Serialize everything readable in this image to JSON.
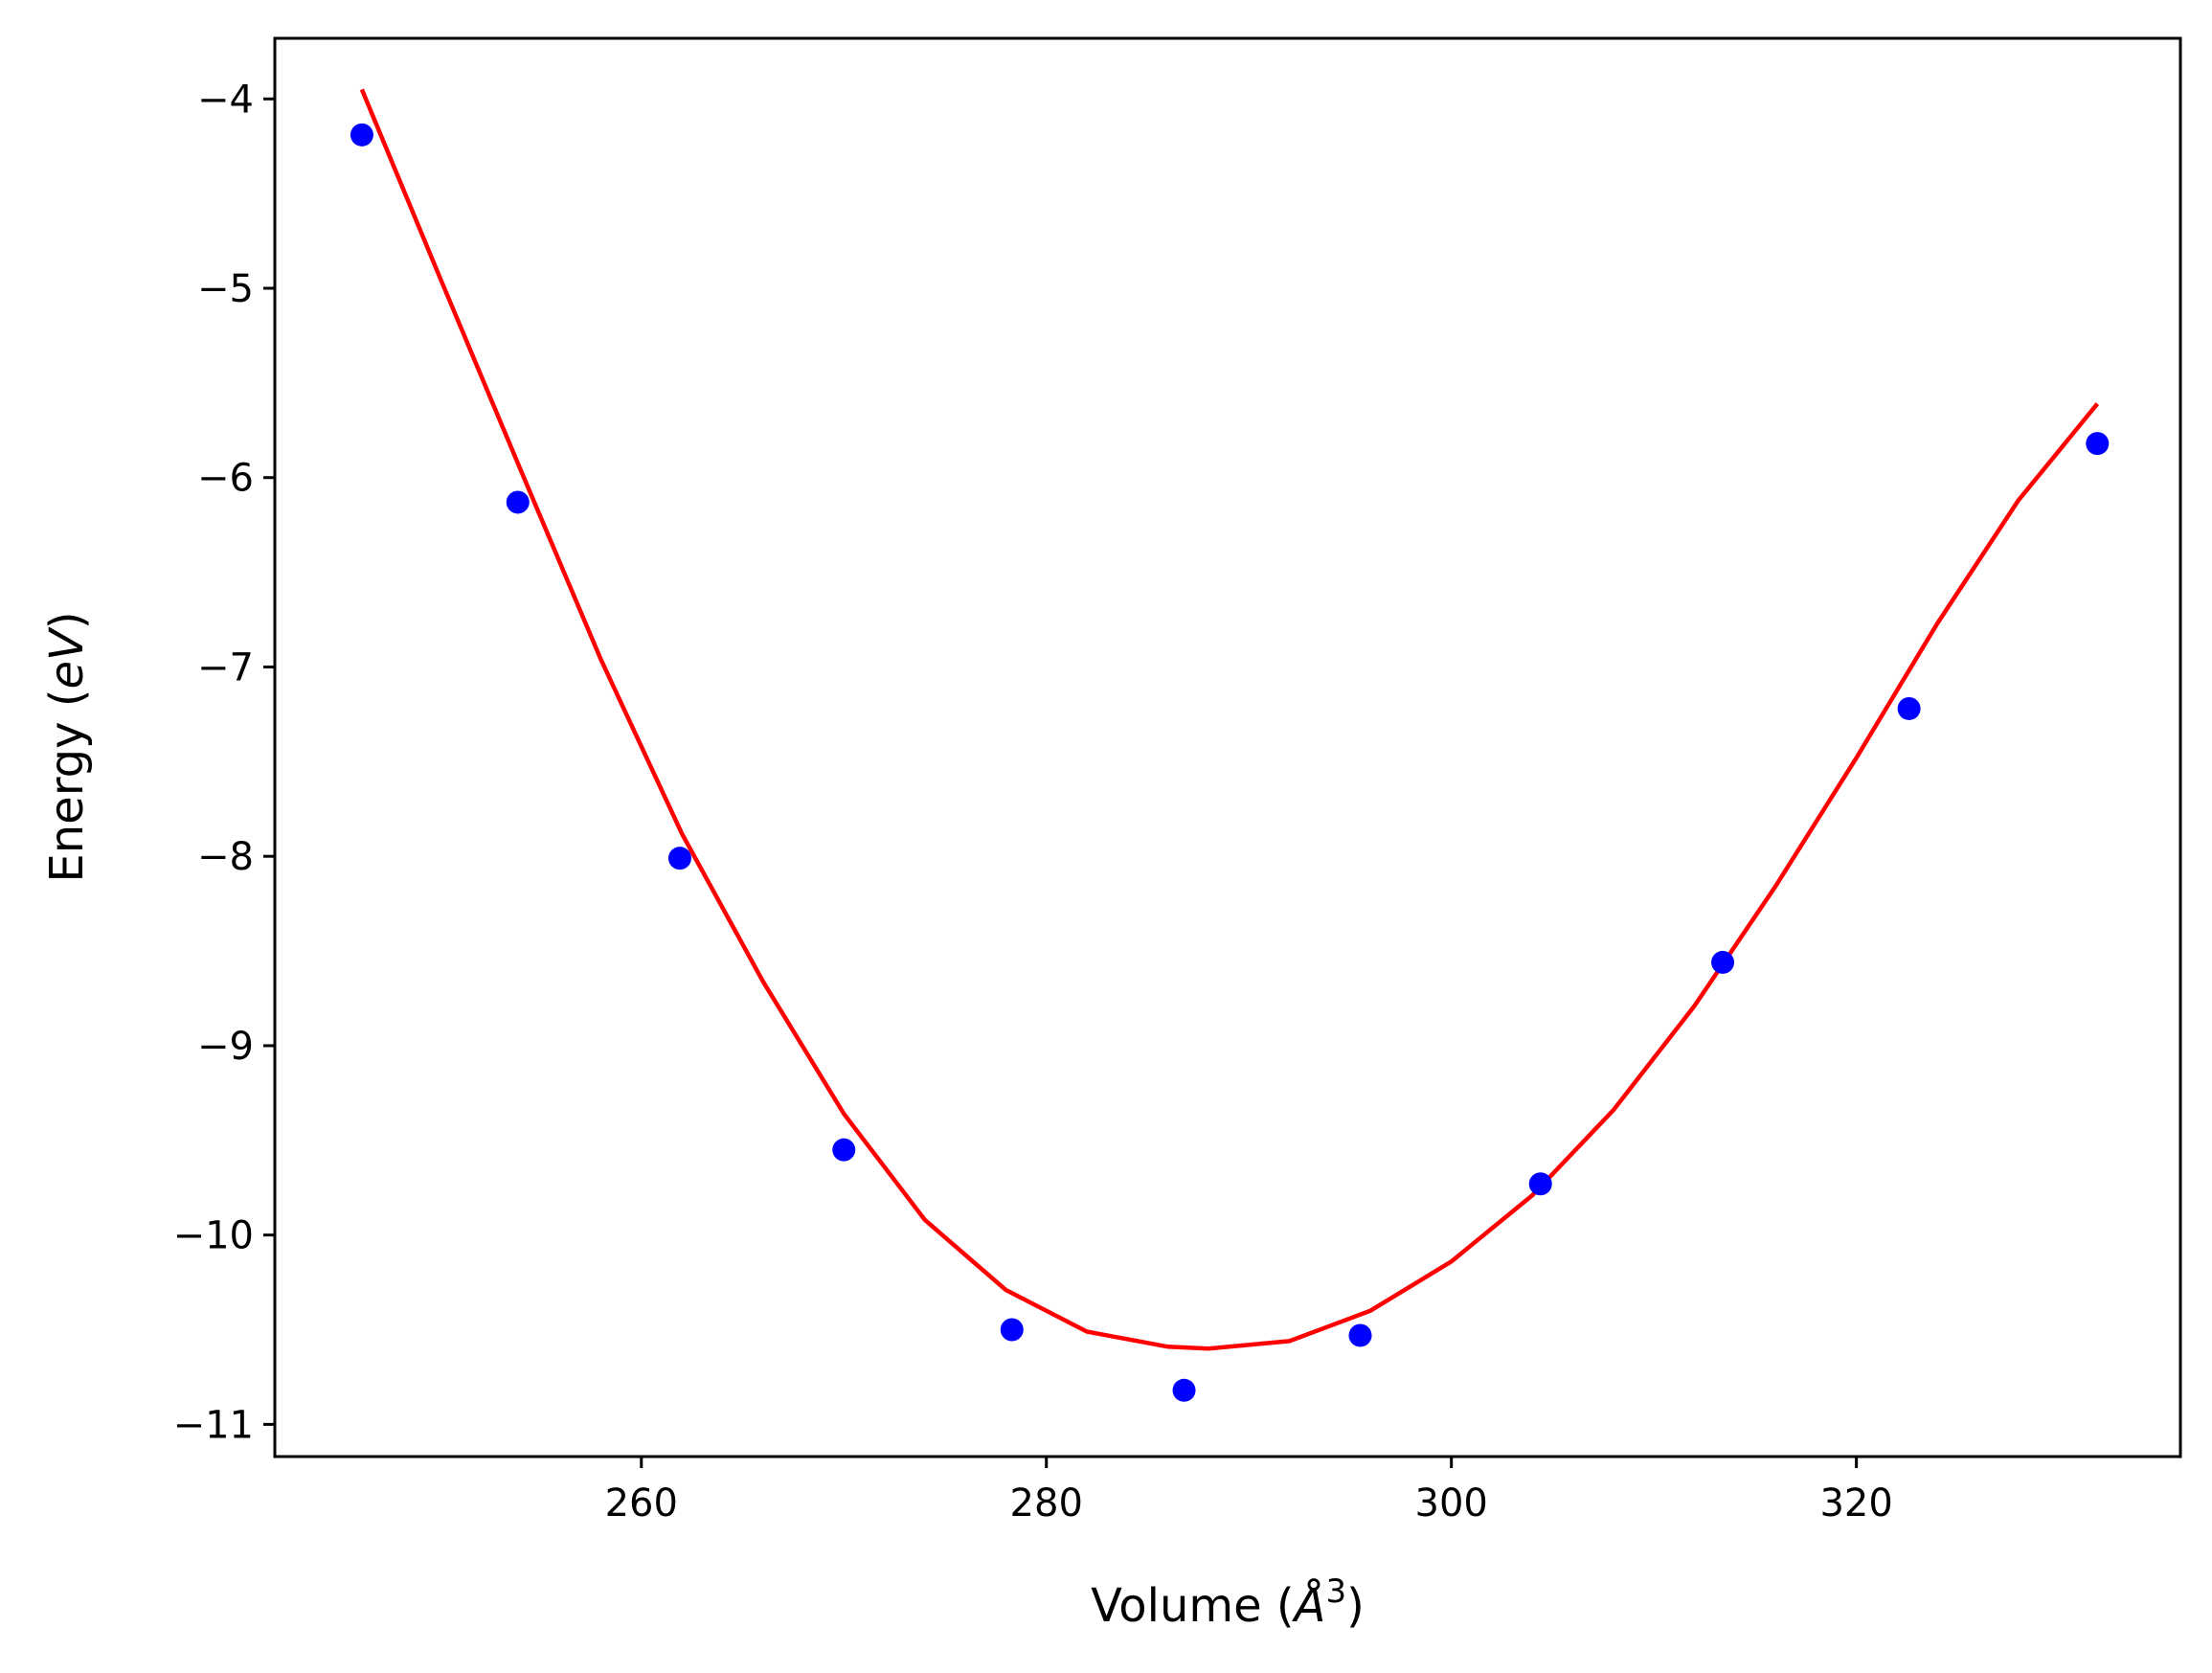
{
  "chart_data": {
    "type": "scatter",
    "title": "",
    "xlabel": "Volume",
    "xlabel_unit": "Å",
    "xlabel_unit_sup": "3",
    "ylabel": "Energy",
    "ylabel_unit": "eV",
    "xlim": [
      241.9,
      336.0
    ],
    "ylim": [
      -11.17,
      -3.68
    ],
    "xticks": [
      260,
      280,
      300,
      320
    ],
    "yticks": [
      -4,
      -5,
      -6,
      -7,
      -8,
      -9,
      -10,
      -11
    ],
    "xtick_labels": [
      "260",
      "280",
      "300",
      "320"
    ],
    "ytick_labels": [
      "−4",
      "−5",
      "−6",
      "−7",
      "−8",
      "−9",
      "−10",
      "−11"
    ],
    "grid": false,
    "series": [
      {
        "kind": "points",
        "color": "#0000ff",
        "x": [
          246.2,
          253.9,
          261.9,
          270.0,
          278.3,
          286.8,
          295.5,
          304.4,
          313.4,
          322.6,
          331.9
        ],
        "y": [
          -4.19,
          -6.13,
          -8.01,
          -9.55,
          -10.5,
          -10.82,
          -10.53,
          -9.73,
          -8.56,
          -7.22,
          -5.82
        ]
      },
      {
        "kind": "fit-curve",
        "color": "#ff0000",
        "x": [
          246.2,
          250,
          254,
          258,
          262,
          266,
          270,
          274,
          278,
          282,
          286,
          288,
          292,
          296,
          300,
          304,
          308,
          312,
          316,
          320,
          324,
          328,
          331.9
        ],
        "y": [
          -3.95,
          -4.93,
          -5.95,
          -6.96,
          -7.88,
          -8.66,
          -9.36,
          -9.92,
          -10.29,
          -10.51,
          -10.59,
          -10.6,
          -10.56,
          -10.4,
          -10.14,
          -9.79,
          -9.34,
          -8.79,
          -8.16,
          -7.48,
          -6.77,
          -6.12,
          -5.61
        ]
      }
    ]
  }
}
